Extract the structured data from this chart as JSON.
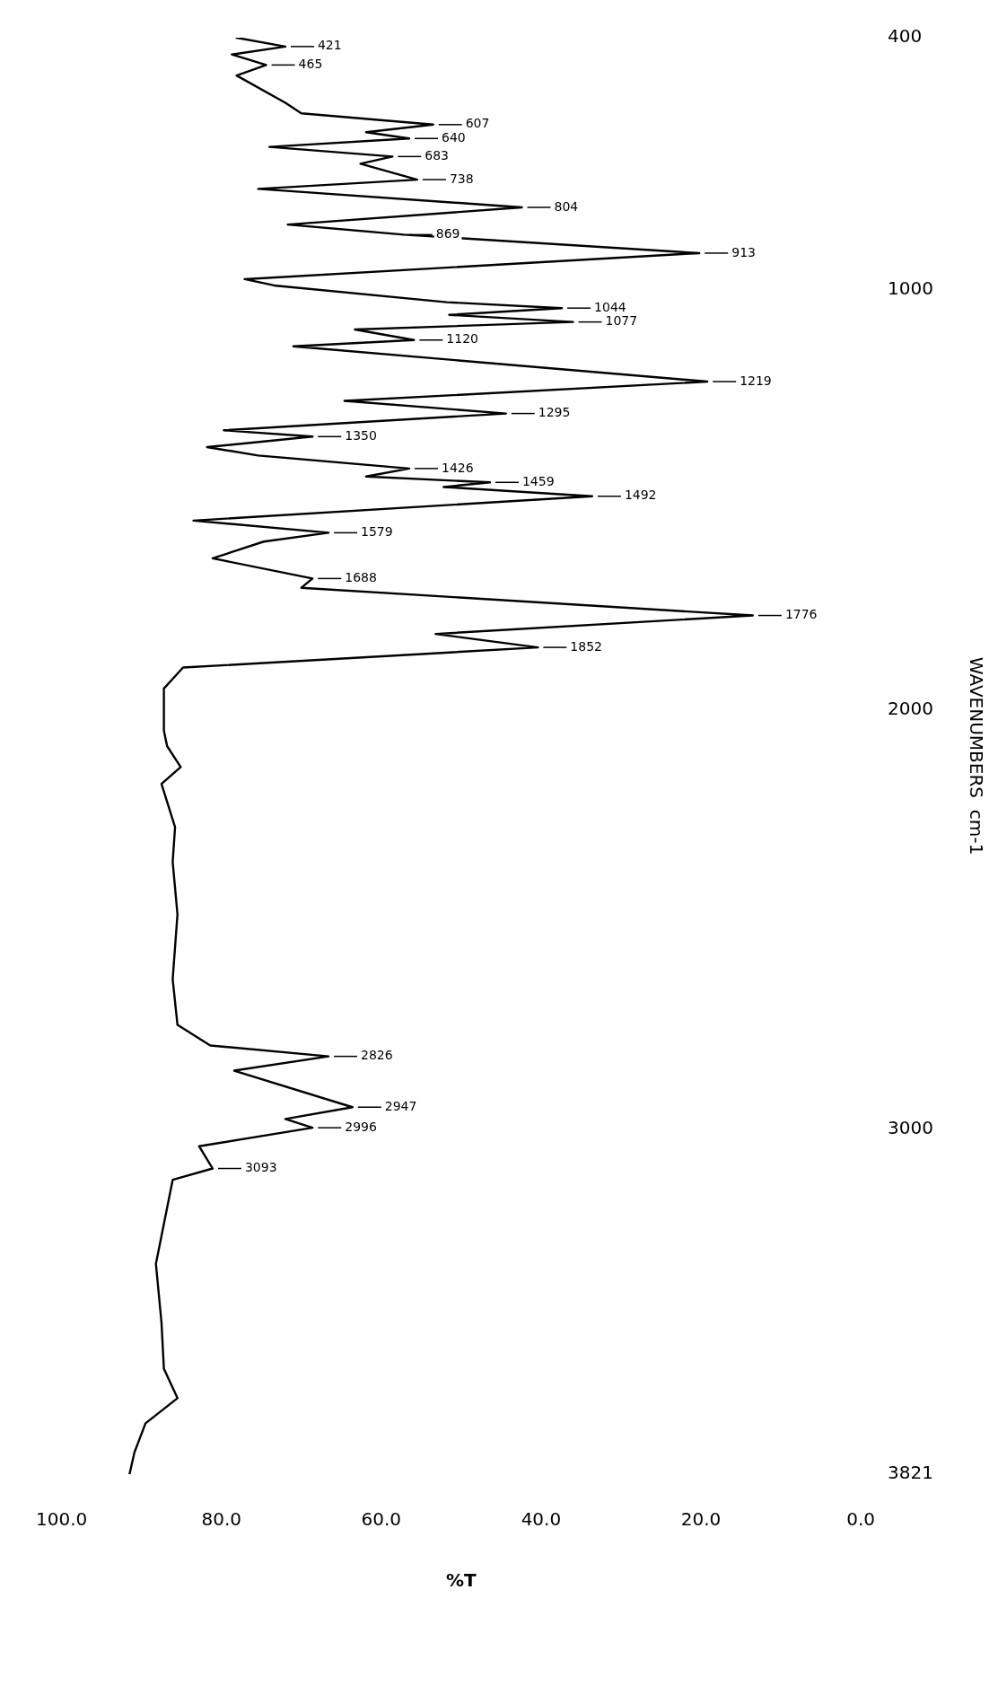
{
  "chart_data": {
    "type": "line",
    "xlabel": "%T",
    "ylabel": "WAVENUMBERS  cm-1",
    "color": "#000000",
    "marker": "none",
    "xlim": [
      100,
      0
    ],
    "xticks": [
      {
        "value": 100,
        "label": "100.0"
      },
      {
        "value": 80,
        "label": "80.0"
      },
      {
        "value": 60,
        "label": "60.0"
      },
      {
        "value": 40,
        "label": "40.0"
      },
      {
        "value": 20,
        "label": "20.0"
      },
      {
        "value": 0,
        "label": "0.0"
      }
    ],
    "ylim": [
      3821,
      400
    ],
    "yticks": [
      3821,
      3000,
      2000,
      1000,
      400
    ],
    "x": [
      91.5,
      90.9,
      89.5,
      85.5,
      87.2,
      87.5,
      88.2,
      86.1,
      81.1,
      82.8,
      68.6,
      72.0,
      63.6,
      78.4,
      66.6,
      81.4,
      85.5,
      86.1,
      85.5,
      86.1,
      85.8,
      87.5,
      85.1,
      86.8,
      87.2,
      87.2,
      84.8,
      40.4,
      53.2,
      13.5,
      70.0,
      68.6,
      81.1,
      74.7,
      66.6,
      83.5,
      33.6,
      52.2,
      46.4,
      61.9,
      56.5,
      75.4,
      81.8,
      68.6,
      79.7,
      44.4,
      64.6,
      19.2,
      71.0,
      55.9,
      63.3,
      36.0,
      51.5,
      37.4,
      51.8,
      73.4,
      77.1,
      20.2,
      57.2,
      71.7,
      42.4,
      75.4,
      55.5,
      62.6,
      58.6,
      74.0,
      56.5,
      61.9,
      53.5,
      70.0,
      72.0,
      78.1,
      74.4,
      78.7,
      72.0,
      78.1
    ],
    "values": [
      3821,
      3770,
      3700,
      3640,
      3570,
      3460,
      3320,
      3120,
      3093,
      3040,
      2996,
      2975,
      2947,
      2860,
      2826,
      2800,
      2751,
      2642,
      2488,
      2363,
      2280,
      2177,
      2137,
      2087,
      2050,
      1950,
      1900,
      1852,
      1820,
      1776,
      1710,
      1688,
      1640,
      1600,
      1579,
      1550,
      1492,
      1470,
      1459,
      1445,
      1426,
      1395,
      1375,
      1350,
      1335,
      1295,
      1265,
      1219,
      1135,
      1120,
      1095,
      1077,
      1060,
      1044,
      1030,
      990,
      975,
      913,
      869,
      845,
      804,
      760,
      738,
      700,
      683,
      660,
      640,
      625,
      607,
      580,
      555,
      490,
      465,
      440,
      421,
      400
    ],
    "annotations": [
      {
        "text": "3093",
        "x": 81.1,
        "y": 3093
      },
      {
        "text": "2996",
        "x": 68.6,
        "y": 2996
      },
      {
        "text": "2947",
        "x": 63.6,
        "y": 2947
      },
      {
        "text": "2826",
        "x": 66.6,
        "y": 2826
      },
      {
        "text": "1852",
        "x": 40.4,
        "y": 1852
      },
      {
        "text": "1776",
        "x": 13.5,
        "y": 1776
      },
      {
        "text": "1688",
        "x": 68.6,
        "y": 1688
      },
      {
        "text": "1579",
        "x": 66.6,
        "y": 1579
      },
      {
        "text": "1492",
        "x": 33.6,
        "y": 1492
      },
      {
        "text": "1459",
        "x": 46.4,
        "y": 1459
      },
      {
        "text": "1426",
        "x": 56.5,
        "y": 1426
      },
      {
        "text": "1350",
        "x": 68.6,
        "y": 1350
      },
      {
        "text": "1295",
        "x": 44.4,
        "y": 1295
      },
      {
        "text": "1219",
        "x": 19.2,
        "y": 1219
      },
      {
        "text": "1120",
        "x": 55.9,
        "y": 1120
      },
      {
        "text": "1077",
        "x": 36.0,
        "y": 1077
      },
      {
        "text": "1044",
        "x": 37.4,
        "y": 1044
      },
      {
        "text": "913",
        "x": 20.2,
        "y": 913
      },
      {
        "text": "869",
        "x": 57.2,
        "y": 869
      },
      {
        "text": "804",
        "x": 42.4,
        "y": 804
      },
      {
        "text": "738",
        "x": 55.5,
        "y": 738
      },
      {
        "text": "683",
        "x": 58.6,
        "y": 683
      },
      {
        "text": "640",
        "x": 56.5,
        "y": 640
      },
      {
        "text": "607",
        "x": 53.5,
        "y": 607
      },
      {
        "text": "465",
        "x": 74.4,
        "y": 465
      },
      {
        "text": "421",
        "x": 72.0,
        "y": 421
      }
    ]
  }
}
